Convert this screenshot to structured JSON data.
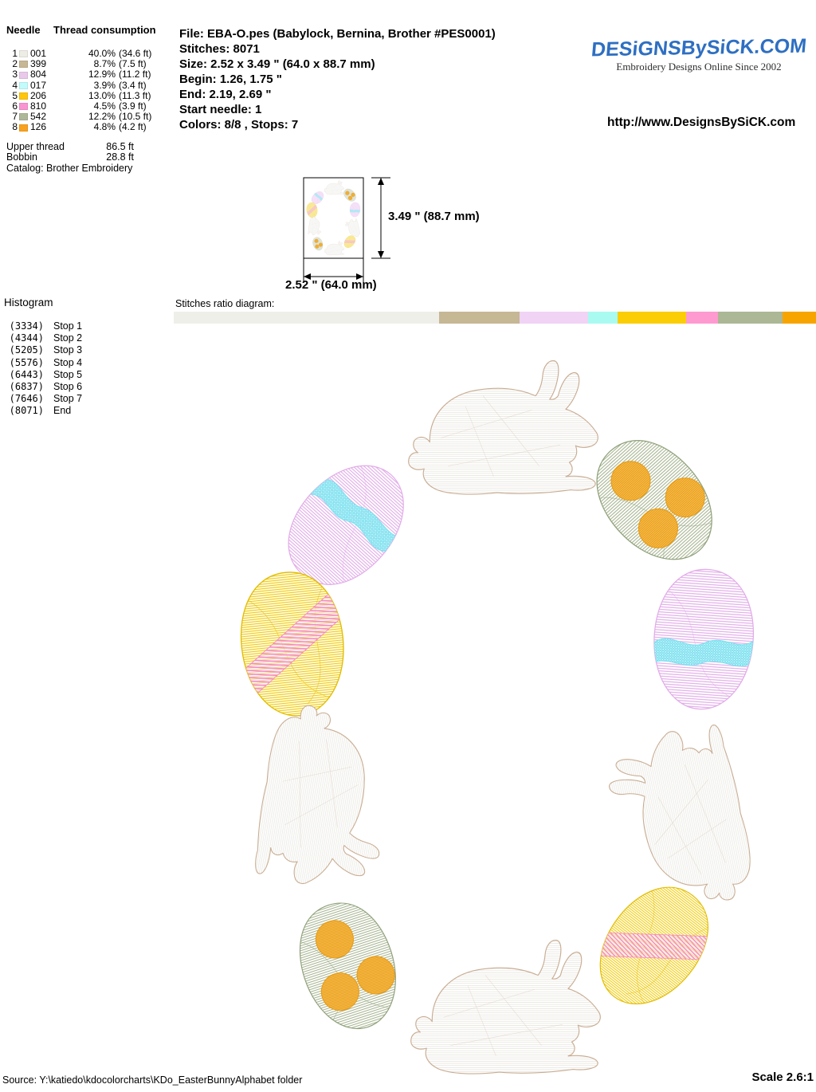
{
  "needle_table": {
    "col_needle": "Needle",
    "col_consumption": "Thread consumption",
    "rows": [
      {
        "needle": "1",
        "code": "001",
        "pct": "40.0%",
        "len": "(34.6 ft)",
        "color": "#EDEDE5"
      },
      {
        "needle": "2",
        "code": "399",
        "pct": "8.7%",
        "len": "(7.5 ft)",
        "color": "#C7B794"
      },
      {
        "needle": "3",
        "code": "804",
        "pct": "12.9%",
        "len": "(11.2 ft)",
        "color": "#E9C9E9"
      },
      {
        "needle": "4",
        "code": "017",
        "pct": "3.9%",
        "len": "(3.4 ft)",
        "color": "#C2FBFB"
      },
      {
        "needle": "5",
        "code": "206",
        "pct": "13.0%",
        "len": "(11.3 ft)",
        "color": "#FFC60A"
      },
      {
        "needle": "6",
        "code": "810",
        "pct": "4.5%",
        "len": "(3.9 ft)",
        "color": "#F995D2"
      },
      {
        "needle": "7",
        "code": "542",
        "pct": "12.2%",
        "len": "(10.5 ft)",
        "color": "#ADB899"
      },
      {
        "needle": "8",
        "code": "126",
        "pct": "4.8%",
        "len": "(4.2 ft)",
        "color": "#F9A21D"
      }
    ],
    "upper_thread_label": "Upper thread",
    "upper_thread_value": "86.5 ft",
    "bobbin_label": "Bobbin",
    "bobbin_value": "28.8 ft",
    "catalog": "Catalog: Brother Embroidery"
  },
  "file_info": {
    "lines": [
      "File: EBA-O.pes  (Babylock, Bernina, Brother #PES0001)",
      "Stitches: 8071",
      "Size: 2.52 x 3.49 \" (64.0 x 88.7 mm)",
      "Begin: 1.26, 1.75 \"",
      "End: 2.19, 2.69 \"",
      "Start needle: 1",
      "Colors: 8/8 , Stops: 7"
    ]
  },
  "brand": {
    "logo_text": "DESiGNSBySiCK.COM",
    "tagline": "Embroidery Designs Online Since 2002",
    "url": "http://www.DesignsBySiCK.com",
    "logo_color": "#2E6FC2"
  },
  "preview": {
    "height_label": "3.49 \" (88.7 mm)",
    "width_label": "2.52 \" (64.0 mm)"
  },
  "histogram": {
    "title": "Histogram",
    "entries": [
      {
        "count": "(3334)",
        "label": "Stop 1"
      },
      {
        "count": "(4344)",
        "label": "Stop 2"
      },
      {
        "count": "(5205)",
        "label": "Stop 3"
      },
      {
        "count": "(5576)",
        "label": "Stop 4"
      },
      {
        "count": "(6443)",
        "label": "Stop 5"
      },
      {
        "count": "(6837)",
        "label": "Stop 6"
      },
      {
        "count": "(7646)",
        "label": "Stop 7"
      },
      {
        "count": "(8071)",
        "label": "End"
      }
    ]
  },
  "ratio": {
    "label": "Stitches ratio diagram:",
    "total_stitches": 8071,
    "segments": [
      {
        "color": "#EFEFEA",
        "stitches": 3334
      },
      {
        "color": "#C6B795",
        "stitches": 1010
      },
      {
        "color": "#F0D3F5",
        "stitches": 861
      },
      {
        "color": "#A9FBF1",
        "stitches": 371
      },
      {
        "color": "#FACD05",
        "stitches": 867
      },
      {
        "color": "#FF9AD0",
        "stitches": 394
      },
      {
        "color": "#ACB795",
        "stitches": 809
      },
      {
        "color": "#F8A400",
        "stitches": 425
      }
    ]
  },
  "design": {
    "description": "Oval wreath of 4 white bunnies and 6 decorated Easter eggs",
    "palette": {
      "logo-blue": "#2E6FC2",
      "bunny-line": "#E9E7E1",
      "bunny-outline": "#C9AD93",
      "egg-green": "#A9B693",
      "egg-green-dark": "#8FA07A",
      "dot-orange-a": "#F6BE55",
      "dot-orange-b": "#E89A10",
      "egg-lavender": "#E2ACE9",
      "band-cyan": "#6FE4EF",
      "egg-yellow": "#F2CC08",
      "egg-yellow-dark": "#E0BC00",
      "band-pink": "#F487C8"
    }
  },
  "footer": {
    "source": "Source: Y:\\katiedo\\kdocolorcharts\\KDo_EasterBunnyAlphabet folder",
    "scale": "Scale 2.6:1"
  }
}
